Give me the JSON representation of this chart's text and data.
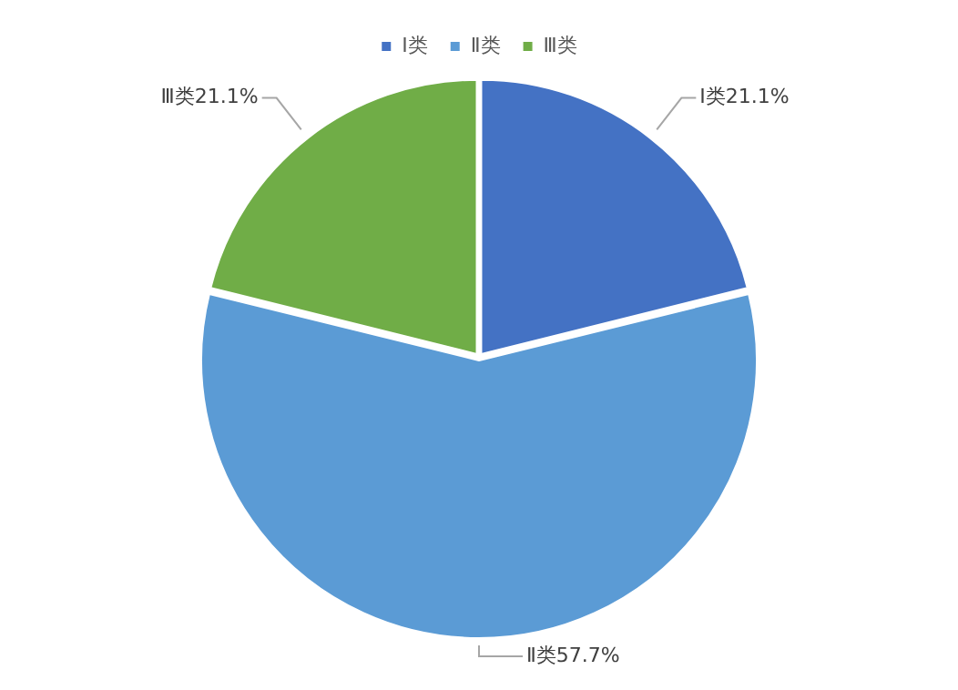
{
  "chart_data": {
    "type": "pie",
    "categories": [
      "Ⅰ类",
      "Ⅱ类",
      "Ⅲ类"
    ],
    "values": [
      21.1,
      57.7,
      21.1
    ],
    "colors": [
      "#4472c4",
      "#5b9bd5",
      "#70ad47"
    ],
    "value_labels": [
      "21.1%",
      "57.7%",
      "21.1%"
    ],
    "legend": "top"
  }
}
